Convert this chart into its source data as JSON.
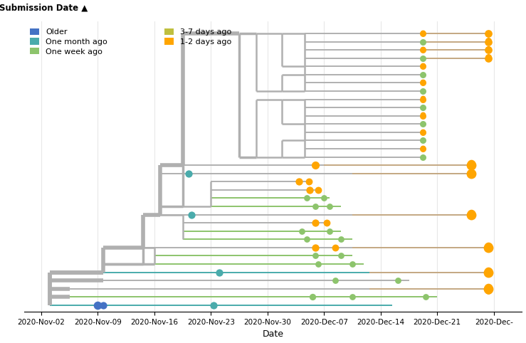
{
  "xlabel": "Date",
  "ylabel": "Submission Date ▲",
  "legend_items": [
    {
      "label": "Older",
      "color": "#4472C4"
    },
    {
      "label": "One month ago",
      "color": "#4AABAB"
    },
    {
      "label": "One week ago",
      "color": "#8DC46C"
    },
    {
      "label": "3-7 days ago",
      "color": "#BFBF3F"
    },
    {
      "label": "1-2 days ago",
      "color": "#FFA500"
    }
  ],
  "x_tick_labels": [
    "2020-Nov-02",
    "2020-Nov-09",
    "2020-Nov-16",
    "2020-Nov-23",
    "2020-Nov-30",
    "2020-Dec-07",
    "2020-Dec-14",
    "2020-Dec-21",
    "2020-Dec-"
  ],
  "x_ticks": [
    0.0,
    1.0,
    2.0,
    3.0,
    4.0,
    5.0,
    6.0,
    7.0,
    8.0
  ],
  "background_color": "#ffffff",
  "grid_color": "#e8e8e8",
  "gray_branch": "#b0b0b0",
  "tan_color": "#C4A882",
  "green_color": "#8DC46C",
  "orange_color": "#FFA500",
  "teal_color": "#4AABAB",
  "blue_color": "#4472C4"
}
